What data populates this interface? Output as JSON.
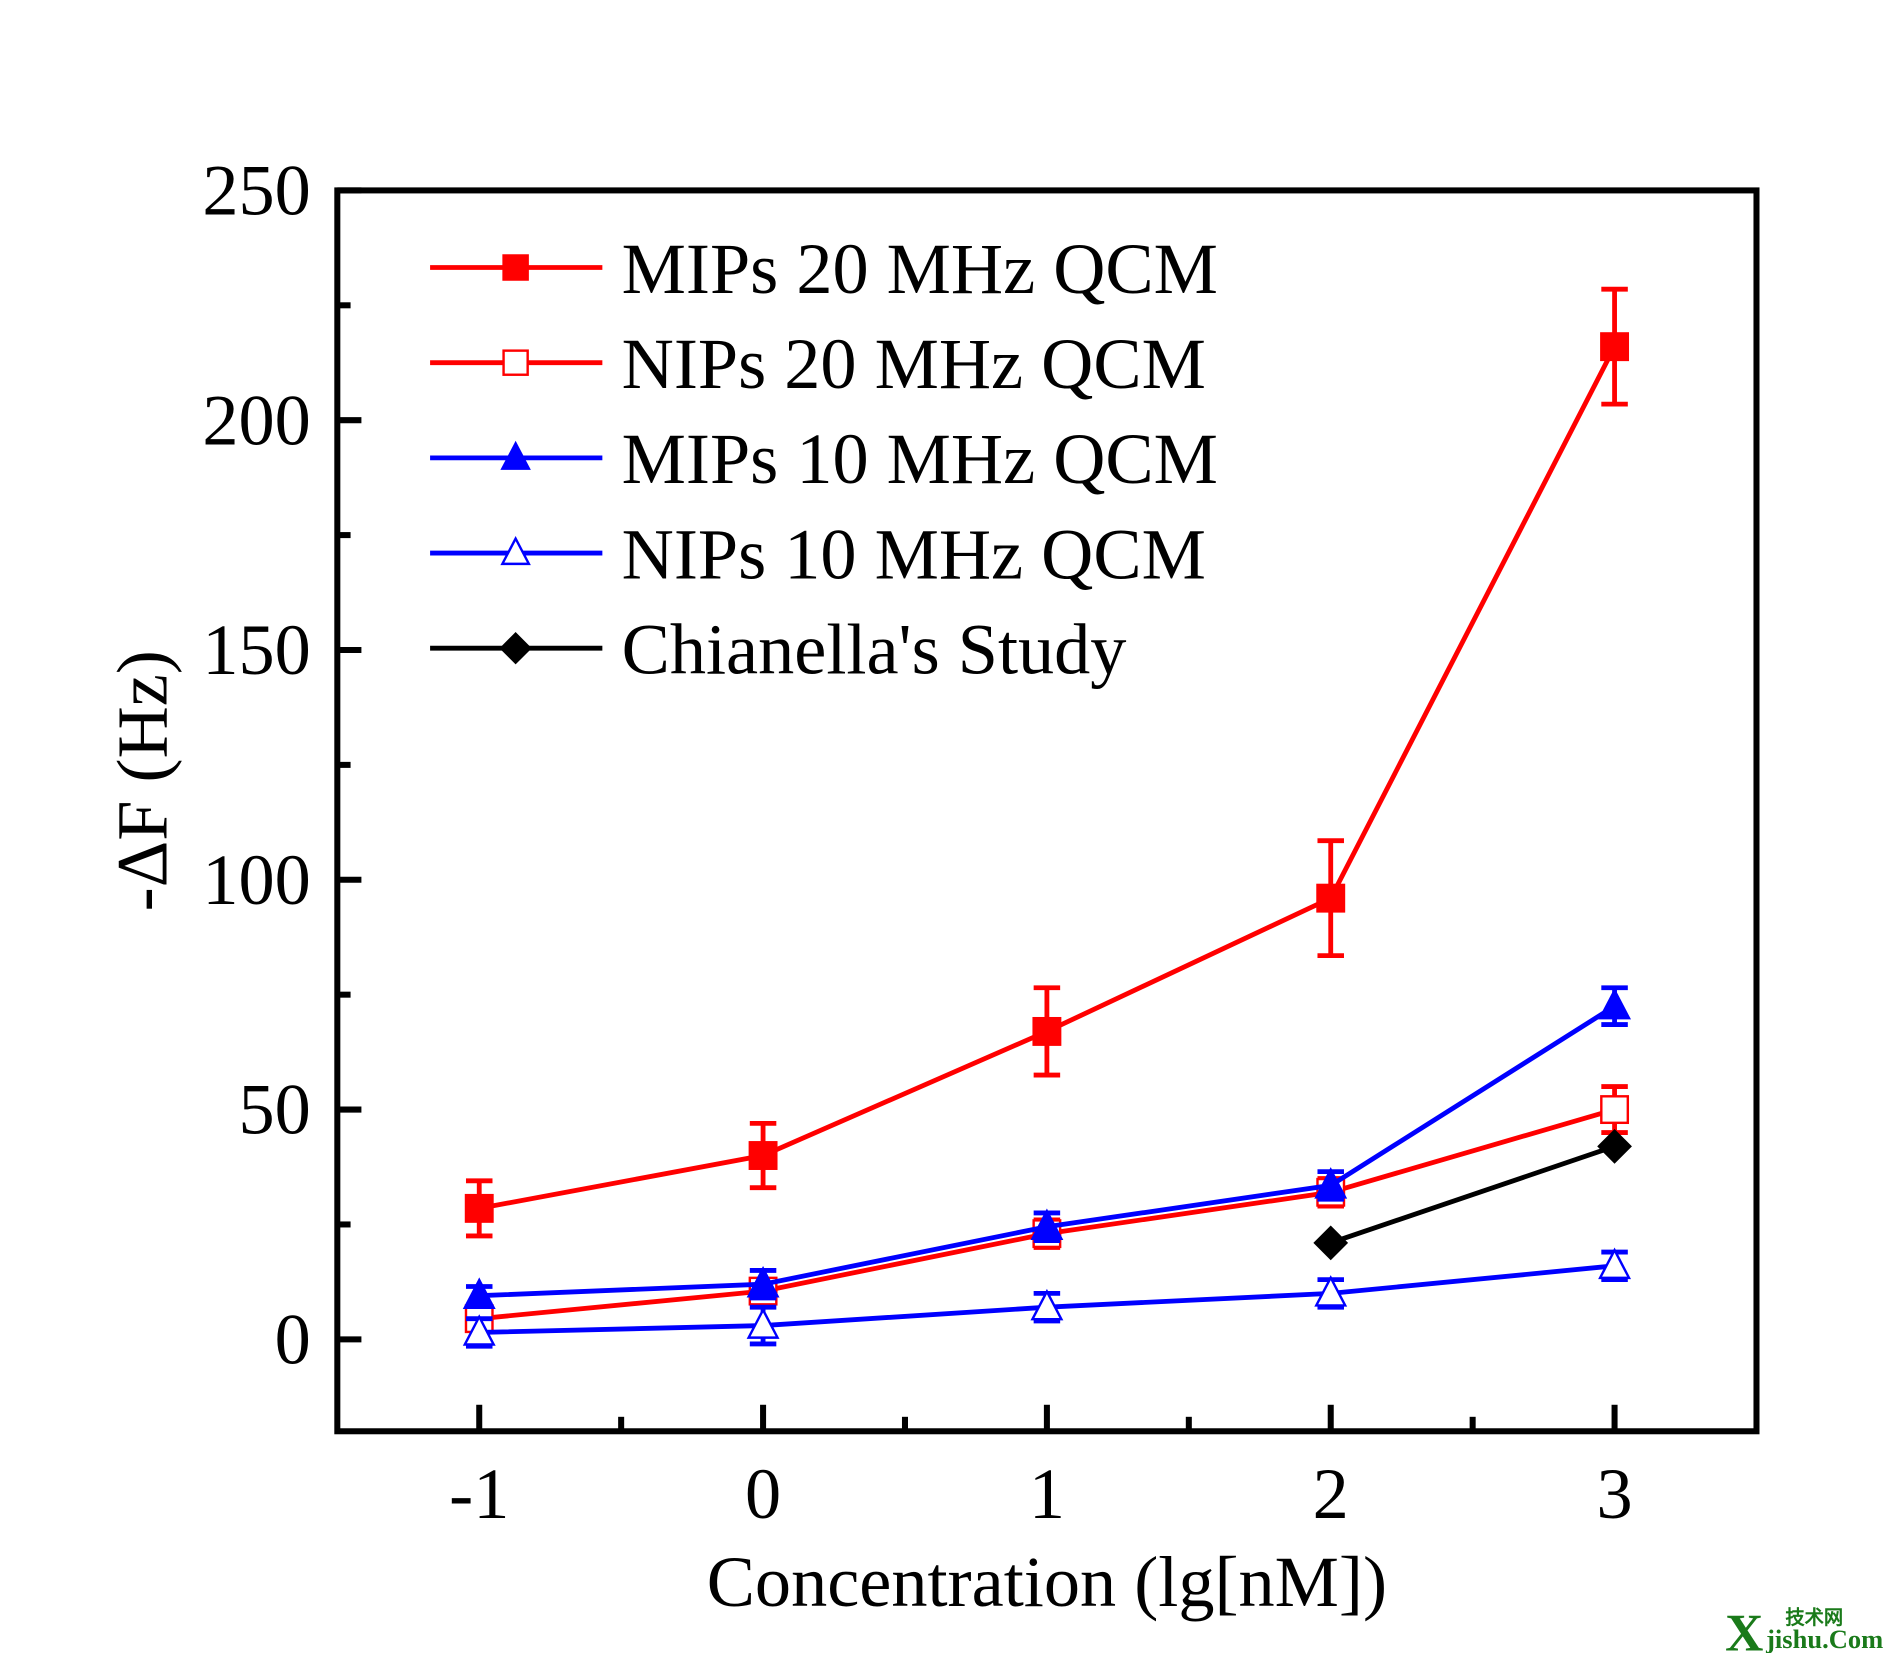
{
  "chart_data": {
    "type": "line",
    "title": "",
    "xlabel": "Concentration (lg[nM])",
    "ylabel": "-ΔF (Hz)",
    "xlim": [
      -1.5,
      3.5
    ],
    "ylim": [
      -20,
      250
    ],
    "x_ticks": [
      -1,
      0,
      1,
      2,
      3
    ],
    "x_tick_labels": [
      "-1",
      "0",
      "1",
      "2",
      "3"
    ],
    "y_ticks": [
      0,
      50,
      100,
      150,
      200,
      250
    ],
    "y_tick_labels": [
      "0",
      "50",
      "100",
      "150",
      "200",
      "250"
    ],
    "grid": false,
    "legend_position": "top-left",
    "series": [
      {
        "name": "MIPs 20 MHz QCM",
        "color": "#ff0000",
        "marker": "filled-square",
        "x": [
          -1,
          0,
          1,
          2,
          3
        ],
        "y": [
          28.5,
          40,
          67,
          96,
          216
        ],
        "error": [
          6,
          7,
          9.5,
          12.5,
          12.5
        ]
      },
      {
        "name": "NIPs 20 MHz QCM",
        "color": "#ff0000",
        "marker": "open-square",
        "x": [
          -1,
          0,
          1,
          2,
          3
        ],
        "y": [
          4.5,
          10.5,
          23,
          32,
          50
        ],
        "error": [
          2,
          2,
          3,
          3,
          5
        ]
      },
      {
        "name": "MIPs 10 MHz QCM",
        "color": "#0000ff",
        "marker": "filled-triangle",
        "x": [
          -1,
          0,
          1,
          2,
          3
        ],
        "y": [
          9.5,
          12,
          24.5,
          33.5,
          72.5
        ],
        "error": [
          2,
          3,
          3,
          3,
          4
        ]
      },
      {
        "name": "NIPs 10 MHz QCM",
        "color": "#0000ff",
        "marker": "open-triangle",
        "x": [
          -1,
          0,
          1,
          2,
          3
        ],
        "y": [
          1.5,
          3,
          7,
          10,
          16
        ],
        "error": [
          3,
          4,
          3,
          3,
          3
        ]
      },
      {
        "name": "Chianella's Study",
        "color": "#000000",
        "marker": "filled-diamond",
        "x": [
          2,
          3
        ],
        "y": [
          21,
          42
        ],
        "error": null
      }
    ]
  },
  "watermark": {
    "text": "jishu.Com",
    "letter": "X",
    "cn": "技术网",
    "color": "#1a7a1a"
  }
}
